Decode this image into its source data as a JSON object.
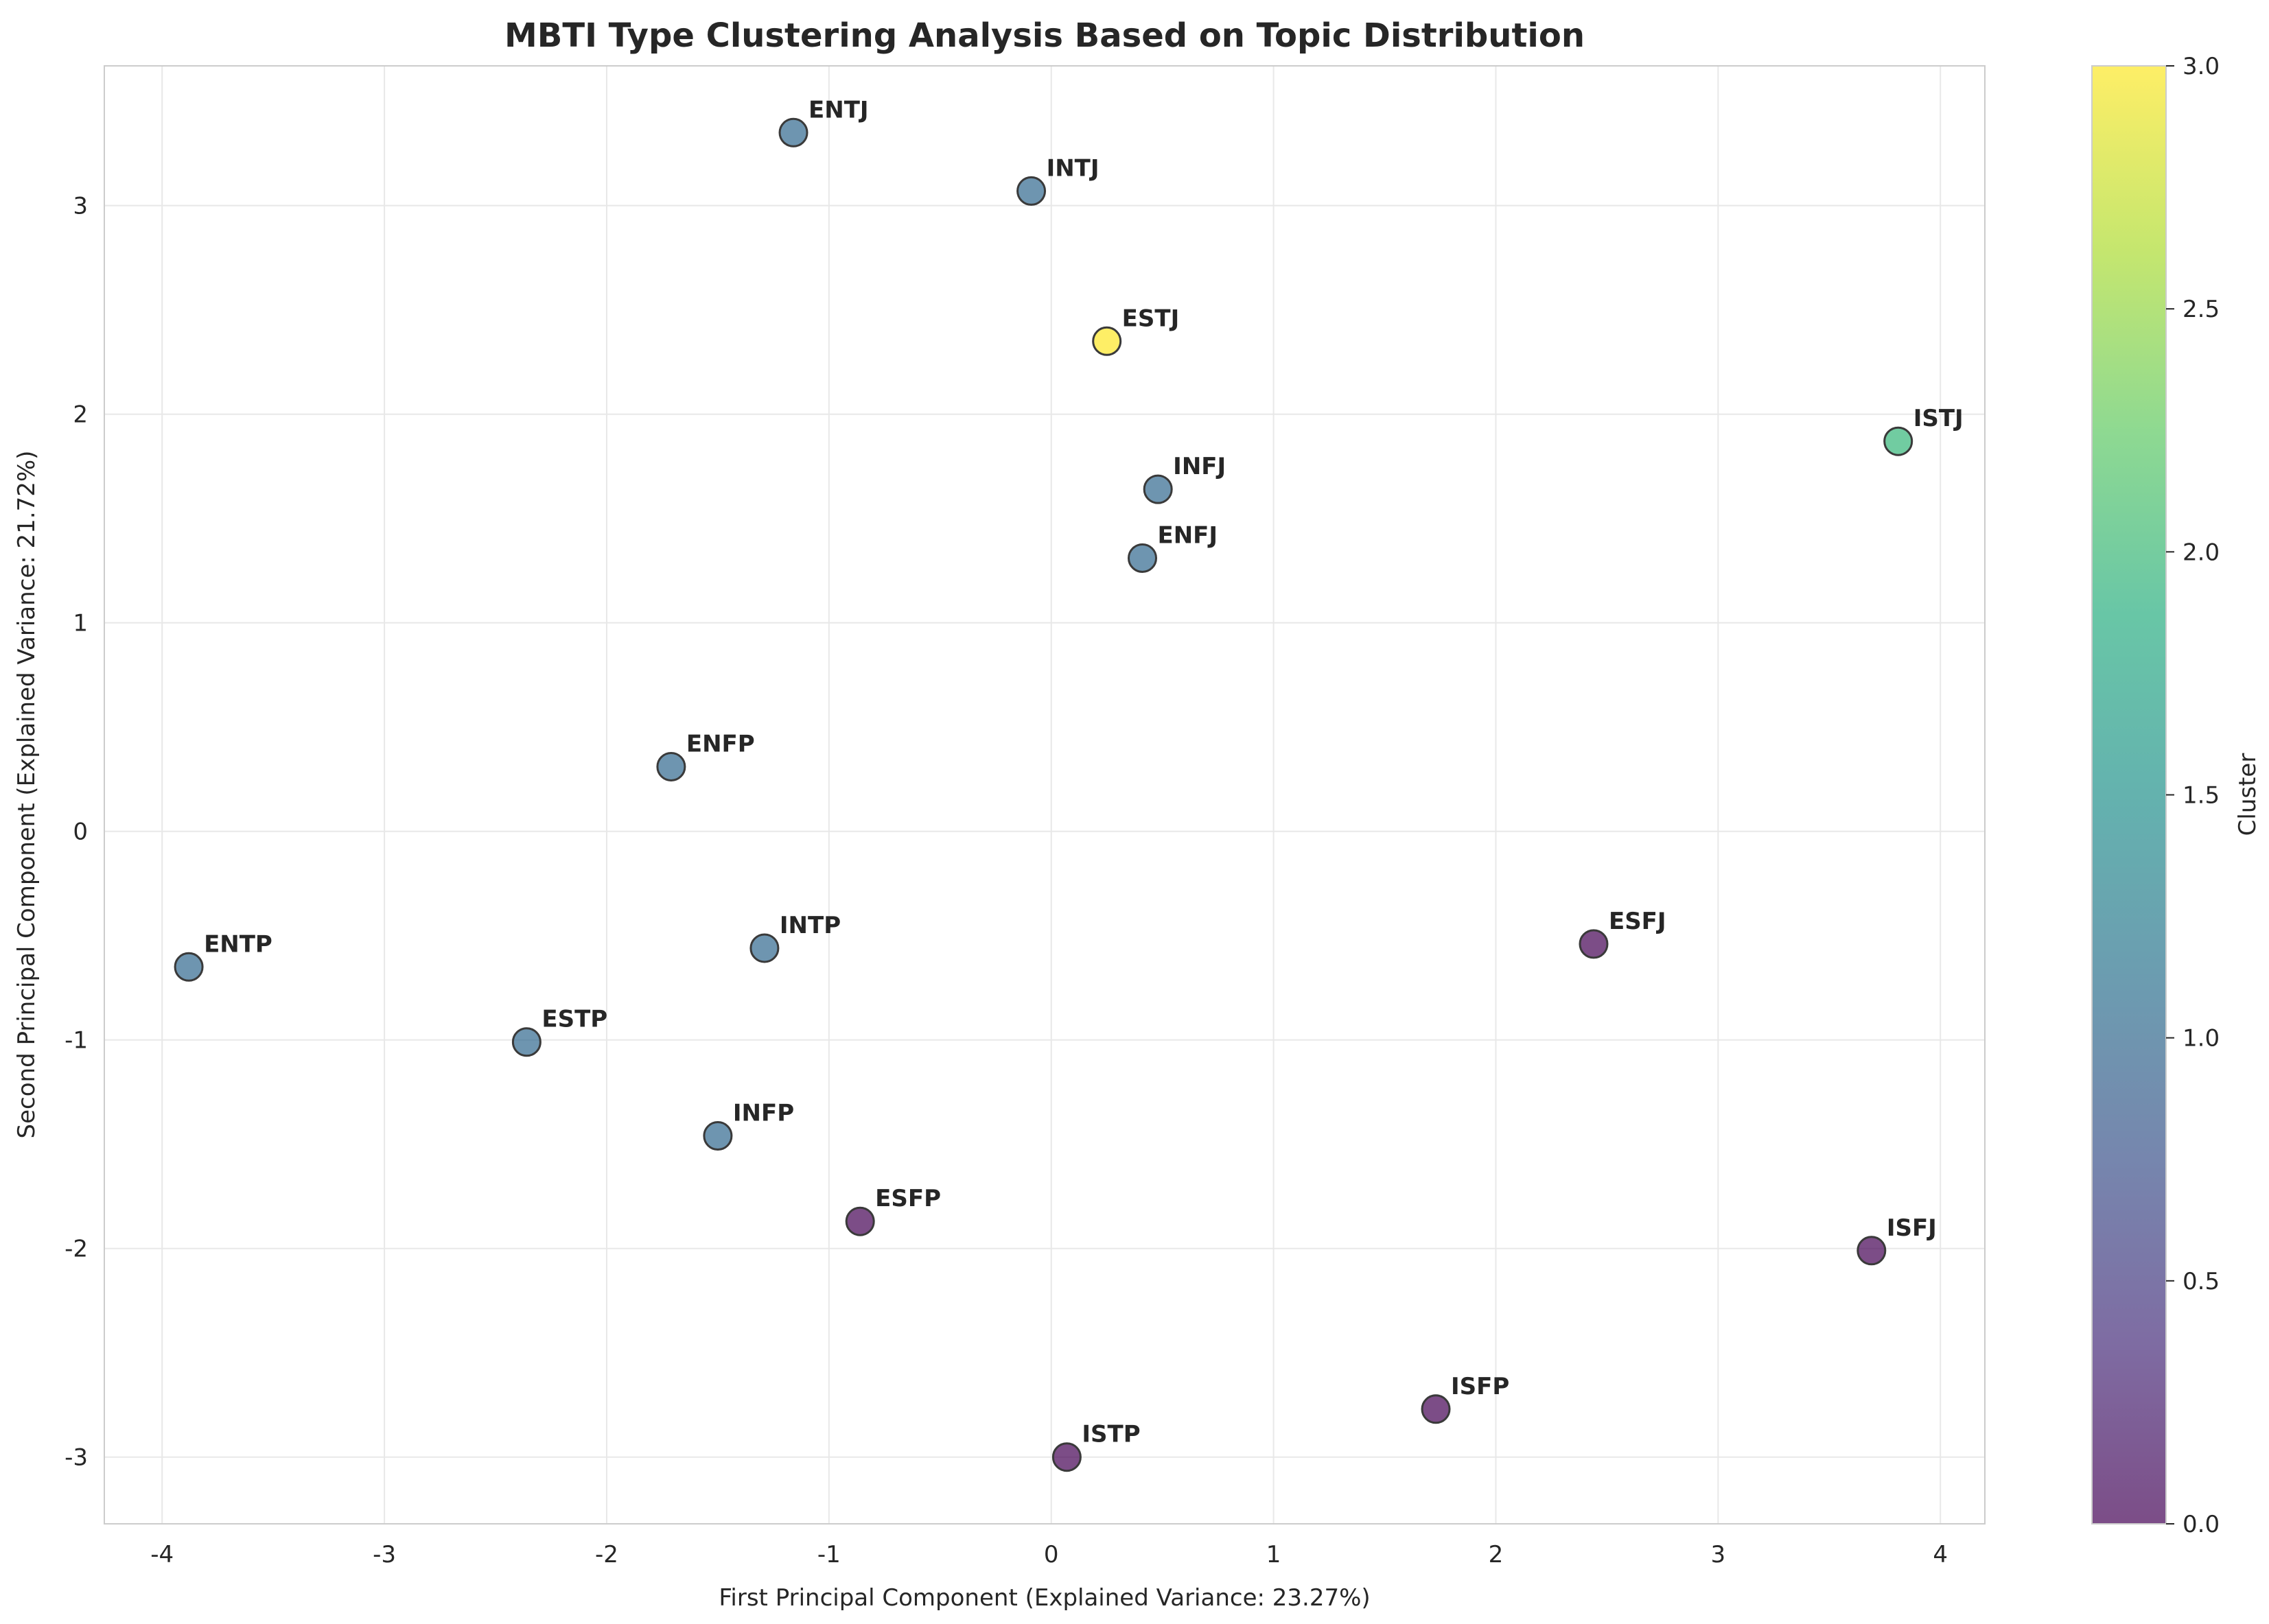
{
  "chart_data": {
    "type": "scatter",
    "title": "MBTI Type Clustering Analysis Based on Topic Distribution",
    "xlabel": "First Principal Component (Explained Variance: 23.27%)",
    "ylabel": "Second Principal Component (Explained Variance: 21.72%)",
    "xlim": [
      -4.26,
      4.2
    ],
    "ylim": [
      -3.32,
      3.67
    ],
    "xticks": [
      -4,
      -3,
      -2,
      -1,
      0,
      1,
      2,
      3,
      4
    ],
    "yticks": [
      -3,
      -2,
      -1,
      0,
      1,
      2,
      3
    ],
    "grid": true,
    "colorbar": {
      "label": "Cluster",
      "range": [
        0,
        3
      ],
      "ticks": [
        "0.0",
        "0.5",
        "1.0",
        "1.5",
        "2.0",
        "2.5",
        "3.0"
      ],
      "colormap": "viridis"
    },
    "points": [
      {
        "label": "ENTJ",
        "x": -1.16,
        "y": 3.35,
        "cluster": 1
      },
      {
        "label": "INTJ",
        "x": -0.09,
        "y": 3.07,
        "cluster": 1
      },
      {
        "label": "ESTJ",
        "x": 0.25,
        "y": 2.35,
        "cluster": 3
      },
      {
        "label": "ISTJ",
        "x": 3.81,
        "y": 1.87,
        "cluster": 2
      },
      {
        "label": "INFJ",
        "x": 0.48,
        "y": 1.64,
        "cluster": 1
      },
      {
        "label": "ENFJ",
        "x": 0.41,
        "y": 1.31,
        "cluster": 1
      },
      {
        "label": "ENFP",
        "x": -1.71,
        "y": 0.31,
        "cluster": 1
      },
      {
        "label": "ENTP",
        "x": -3.88,
        "y": -0.65,
        "cluster": 1
      },
      {
        "label": "INTP",
        "x": -1.29,
        "y": -0.56,
        "cluster": 1
      },
      {
        "label": "ESFJ",
        "x": 2.44,
        "y": -0.54,
        "cluster": 0
      },
      {
        "label": "ESTP",
        "x": -2.36,
        "y": -1.01,
        "cluster": 1
      },
      {
        "label": "INFP",
        "x": -1.5,
        "y": -1.46,
        "cluster": 1
      },
      {
        "label": "ESFP",
        "x": -0.86,
        "y": -1.87,
        "cluster": 0
      },
      {
        "label": "ISFJ",
        "x": 3.69,
        "y": -2.01,
        "cluster": 0
      },
      {
        "label": "ISFP",
        "x": 1.73,
        "y": -2.77,
        "cluster": 0
      },
      {
        "label": "ISTP",
        "x": 0.07,
        "y": -3.0,
        "cluster": 0
      }
    ],
    "colors": {
      "cluster_0": "#440154",
      "cluster_1": "#31688e",
      "cluster_2": "#35b779",
      "cluster_3": "#fde725",
      "grid": "#e8e8e8",
      "spine": "#cccccc",
      "text": "#262626"
    }
  }
}
